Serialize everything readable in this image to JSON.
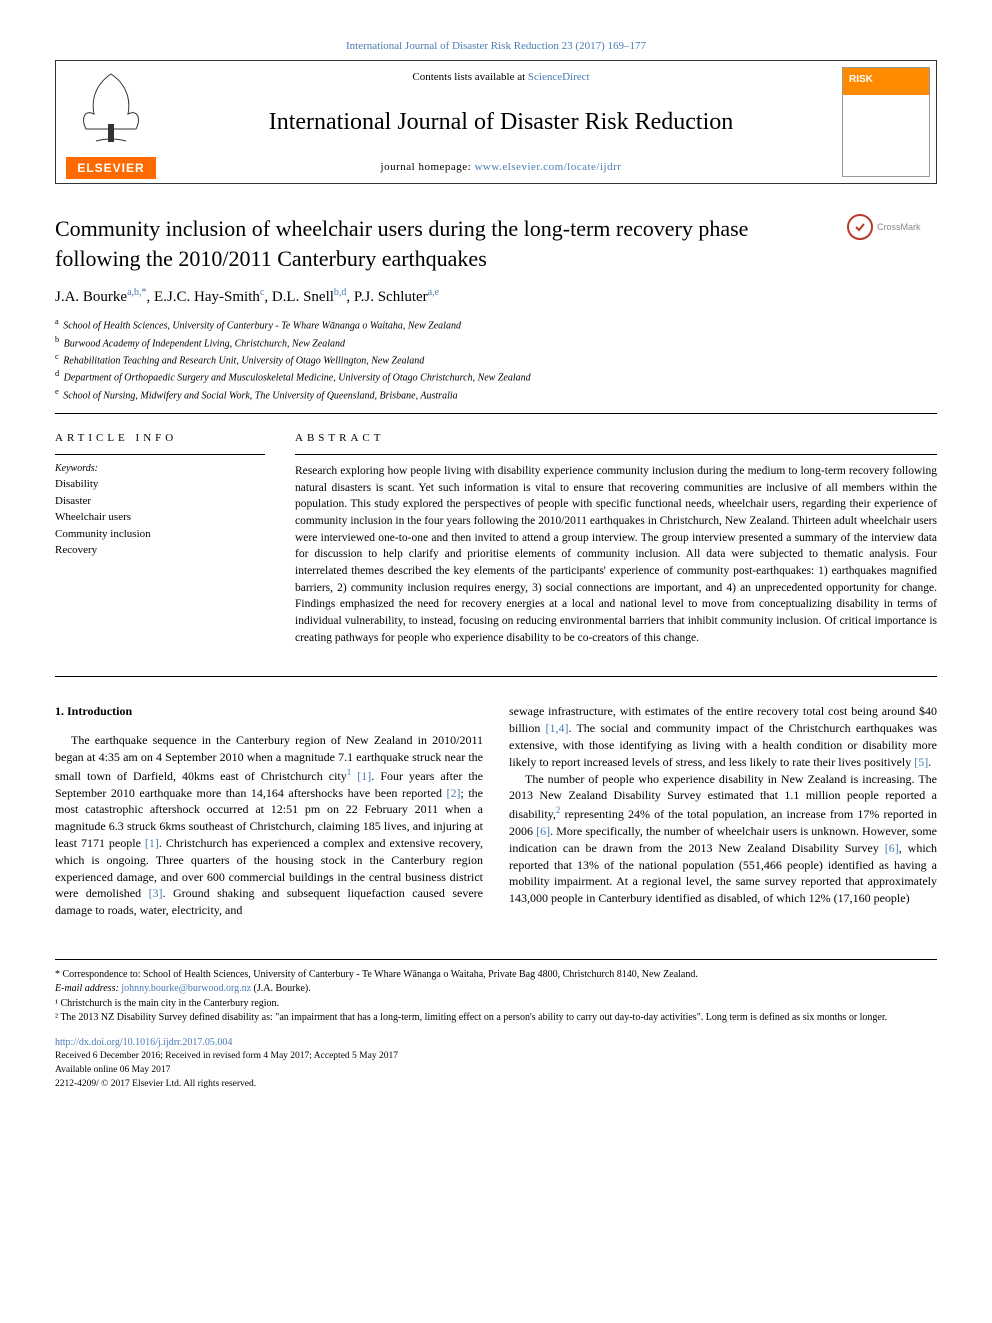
{
  "topLink": "International Journal of Disaster Risk Reduction 23 (2017) 169–177",
  "header": {
    "contentsPrefix": "Contents lists available at ",
    "contentsLink": "ScienceDirect",
    "journalName": "International Journal of Disaster Risk Reduction",
    "homepagePrefix": "journal homepage: ",
    "homepageUrl": "www.elsevier.com/locate/ijdrr",
    "elsevierLabel": "ELSEVIER"
  },
  "crossmark": "CrossMark",
  "title": "Community inclusion of wheelchair users during the long-term recovery phase following the 2010/2011 Canterbury earthquakes",
  "authors": [
    {
      "name": "J.A. Bourke",
      "sup": "a,b,*"
    },
    {
      "name": "E.J.C. Hay-Smith",
      "sup": "c"
    },
    {
      "name": "D.L. Snell",
      "sup": "b,d"
    },
    {
      "name": "P.J. Schluter",
      "sup": "a,e"
    }
  ],
  "affiliations": [
    {
      "sup": "a",
      "text": "School of Health Sciences, University of Canterbury - Te Whare Wānanga o Waitaha, New Zealand"
    },
    {
      "sup": "b",
      "text": "Burwood Academy of Independent Living, Christchurch, New Zealand"
    },
    {
      "sup": "c",
      "text": "Rehabilitation Teaching and Research Unit, University of Otago Wellington, New Zealand"
    },
    {
      "sup": "d",
      "text": "Department of Orthopaedic Surgery and Musculoskeletal Medicine, University of Otago Christchurch, New Zealand"
    },
    {
      "sup": "e",
      "text": "School of Nursing, Midwifery and Social Work, The University of Queensland, Brisbane, Australia"
    }
  ],
  "articleInfo": {
    "heading": "ARTICLE INFO",
    "keywordsLabel": "Keywords:",
    "keywords": [
      "Disability",
      "Disaster",
      "Wheelchair users",
      "Community inclusion",
      "Recovery"
    ]
  },
  "abstract": {
    "heading": "ABSTRACT",
    "text": "Research exploring how people living with disability experience community inclusion during the medium to long-term recovery following natural disasters is scant. Yet such information is vital to ensure that recovering communities are inclusive of all members within the population. This study explored the perspectives of people with specific functional needs, wheelchair users, regarding their experience of community inclusion in the four years following the 2010/2011 earthquakes in Christchurch, New Zealand. Thirteen adult wheelchair users were interviewed one-to-one and then invited to attend a group interview. The group interview presented a summary of the interview data for discussion to help clarify and prioritise elements of community inclusion. All data were subjected to thematic analysis. Four interrelated themes described the key elements of the participants' experience of community post-earthquakes: 1) earthquakes magnified barriers, 2) community inclusion requires energy, 3) social connections are important, and 4) an unprecedented opportunity for change. Findings emphasized the need for recovery energies at a local and national level to move from conceptualizing disability in terms of individual vulnerability, to instead, focusing on reducing environmental barriers that inhibit community inclusion. Of critical importance is creating pathways for people who experience disability to be co-creators of this change."
  },
  "body": {
    "introHeading": "1. Introduction",
    "leftParagraph": "The earthquake sequence in the Canterbury region of New Zealand in 2010/2011 began at 4:35 am on 4 September 2010 when a magnitude 7.1 earthquake struck near the small town of Darfield, 40kms east of Christchurch city¹ [1]. Four years after the September 2010 earthquake more than 14,164 aftershocks have been reported [2]; the most catastrophic aftershock occurred at 12:51 pm on 22 February 2011 when a magnitude 6.3 struck 6kms southeast of Christchurch, claiming 185 lives, and injuring at least 7171 people [1]. Christchurch has experienced a complex and extensive recovery, which is ongoing. Three quarters of the housing stock in the Canterbury region experienced damage, and over 600 commercial buildings in the central business district were demolished [3]. Ground shaking and subsequent liquefaction caused severe damage to roads, water, electricity, and",
    "rightParagraph1": "sewage infrastructure, with estimates of the entire recovery total cost being around $40 billion [1,4]. The social and community impact of the Christchurch earthquakes was extensive, with those identifying as living with a health condition or disability more likely to report increased levels of stress, and less likely to rate their lives positively [5].",
    "rightParagraph2": "The number of people who experience disability in New Zealand is increasing. The 2013 New Zealand Disability Survey estimated that 1.1 million people reported a disability,² representing 24% of the total population, an increase from 17% reported in 2006 [6]. More specifically, the number of wheelchair users is unknown. However, some indication can be drawn from the 2013 New Zealand Disability Survey [6], which reported that 13% of the national population (551,466 people) identified as having a mobility impairment. At a regional level, the same survey reported that approximately 143,000 people in Canterbury identified as disabled, of which 12% (17,160 people)"
  },
  "footer": {
    "correspondence": "* Correspondence to: School of Health Sciences, University of Canterbury - Te Whare Wānanga o Waitaha, Private Bag 4800, Christchurch 8140, New Zealand.",
    "emailLabel": "E-mail address: ",
    "email": "johnny.bourke@burwood.org.nz",
    "emailAttribution": " (J.A. Bourke).",
    "footnote1": "¹ Christchurch is the main city in the Canterbury region.",
    "footnote2": "² The 2013 NZ Disability Survey defined disability as: \"an impairment that has a long-term, limiting effect on a person's ability to carry out day-to-day activities\". Long term is defined as six months or longer.",
    "doi": "http://dx.doi.org/10.1016/j.ijdrr.2017.05.004",
    "received": "Received 6 December 2016; Received in revised form 4 May 2017; Accepted 5 May 2017",
    "online": "Available online 06 May 2017",
    "copyright": "2212-4209/ © 2017 Elsevier Ltd. All rights reserved."
  },
  "colors": {
    "link": "#4a7bb5",
    "elsevierOrange": "#ff6a00",
    "crossmarkRed": "#b83a2a",
    "textBlack": "#000000"
  },
  "typography": {
    "bodyFont": "Georgia, Times New Roman, serif",
    "titleSize": 22,
    "journalNameSize": 24,
    "authorSize": 15,
    "abstractSize": 11.5,
    "bodySize": 12,
    "footerSize": 10
  }
}
